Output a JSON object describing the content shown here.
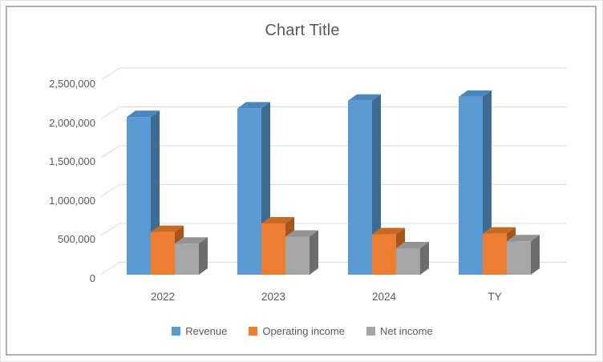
{
  "window": {
    "background": "#ffffff",
    "frame_color": "#b0b0b0"
  },
  "chart_data": {
    "type": "bar",
    "variant": "3d-clustered-column",
    "title": "Chart Title",
    "categories": [
      "2022",
      "2023",
      "2024",
      "TY"
    ],
    "series": [
      {
        "name": "Revenue",
        "color": "#5B9BD5",
        "color_top": "#4C86BE",
        "color_side": "#3E6B94",
        "values": [
          2030000,
          2140000,
          2240000,
          2290000
        ]
      },
      {
        "name": "Operating income",
        "color": "#ED7D31",
        "color_top": "#C96A23",
        "color_side": "#A4561D",
        "values": [
          550000,
          660000,
          520000,
          530000
        ]
      },
      {
        "name": "Net income",
        "color": "#A6A6A6",
        "color_top": "#949494",
        "color_side": "#6D6D6D",
        "values": [
          400000,
          490000,
          340000,
          430000
        ]
      }
    ],
    "y_axis": {
      "min": 0,
      "max": 2500000,
      "tick_interval": 500000,
      "tick_labels": [
        "0",
        "500,000",
        "1,000,000",
        "1,500,000",
        "2,000,000",
        "2,500,000"
      ]
    },
    "gridlines": true,
    "gridline_color": "#D9D9D9",
    "text_color": "#595959",
    "legend_position": "bottom"
  }
}
